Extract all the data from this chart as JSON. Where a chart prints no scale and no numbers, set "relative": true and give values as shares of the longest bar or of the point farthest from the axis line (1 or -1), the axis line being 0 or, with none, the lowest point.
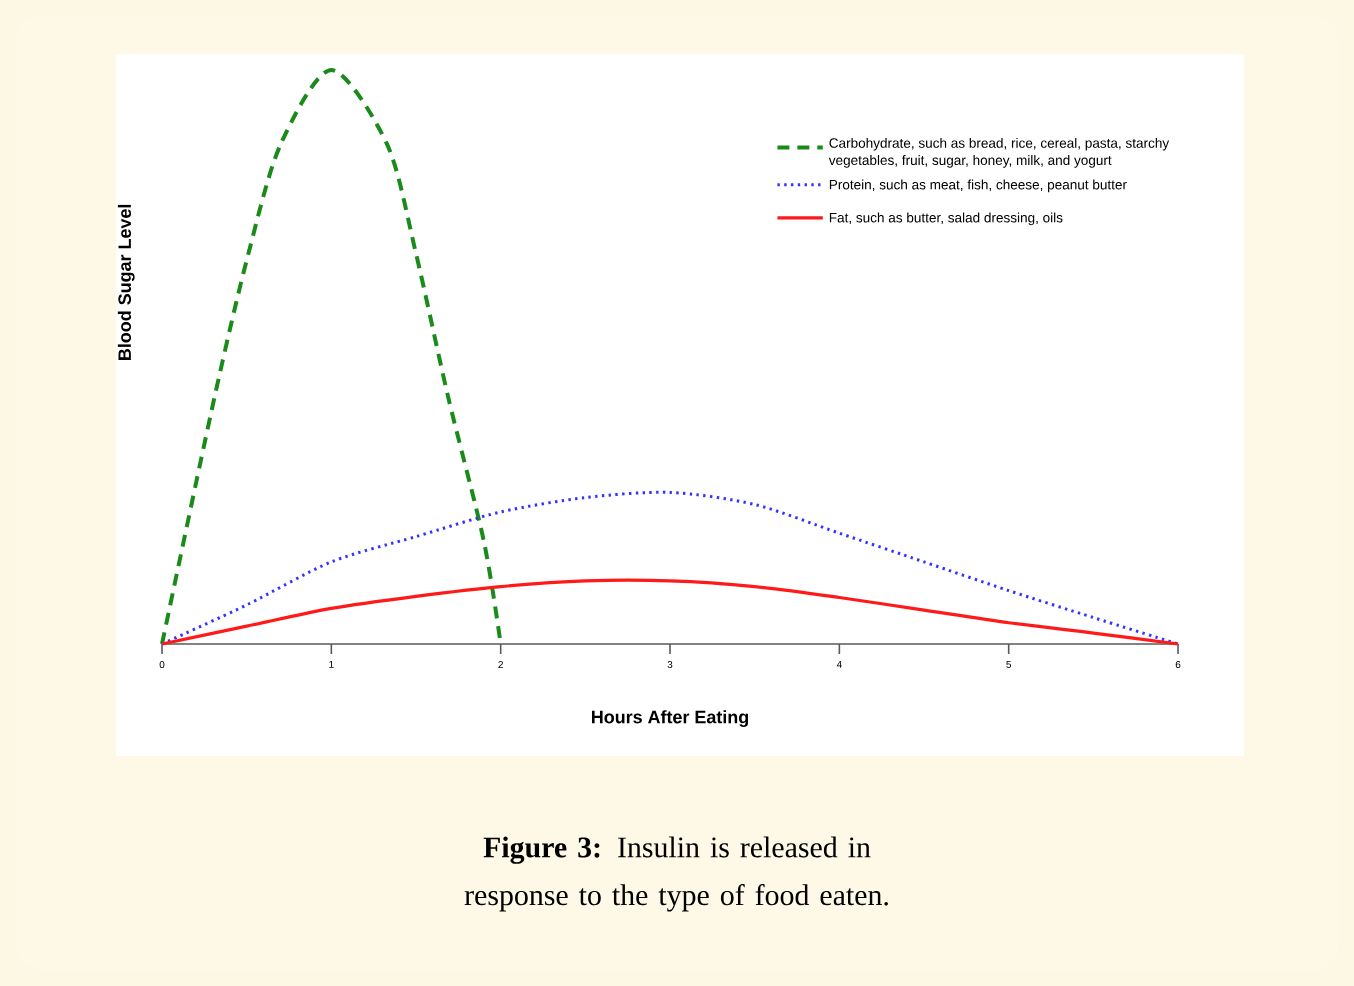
{
  "chart_data": {
    "type": "line",
    "xlabel": "Hours After Eating",
    "ylabel": "Blood Sugar Level",
    "relative": true,
    "xlim": [
      0,
      6
    ],
    "xticks": [
      0,
      1,
      2,
      3,
      4,
      5,
      6
    ],
    "legend": "top right",
    "series": [
      {
        "name": "Carbohydrate, such as bread, rice, cereal, pasta, starchy vegetables, fruit, sugar, honey, milk, and yogurt",
        "color": "#1a8a1a",
        "line_style": "dashed",
        "x": [
          0,
          0.31,
          0.51,
          0.7,
          1.0,
          1.33,
          1.5,
          1.69,
          1.9,
          2.0
        ],
        "values": [
          0,
          0.43,
          0.68,
          0.87,
          1.0,
          0.87,
          0.68,
          0.43,
          0.18,
          0
        ]
      },
      {
        "name": "Protein, such as meat, fish, cheese, peanut butter",
        "color": "#3333ff",
        "line_style": "dotted",
        "x": [
          0,
          0.5,
          1,
          1.5,
          2,
          2.5,
          3,
          3.5,
          4,
          4.5,
          5,
          5.5,
          6
        ],
        "values": [
          0,
          0.068,
          0.143,
          0.187,
          0.23,
          0.255,
          0.264,
          0.243,
          0.193,
          0.143,
          0.093,
          0.046,
          0
        ]
      },
      {
        "name": "Fat, such as butter, salad dressing, oils",
        "color": "#ff1a1a",
        "line_style": "solid",
        "x": [
          0,
          0.5,
          1,
          1.5,
          2,
          2.5,
          3,
          3.5,
          4,
          4.5,
          5,
          5.5,
          6
        ],
        "values": [
          0,
          0.031,
          0.062,
          0.083,
          0.1,
          0.11,
          0.11,
          0.1,
          0.081,
          0.059,
          0.037,
          0.019,
          0
        ]
      }
    ],
    "annotations": [
      "**Figure 3:** Insulin is released in response to the type of food eaten."
    ]
  }
}
